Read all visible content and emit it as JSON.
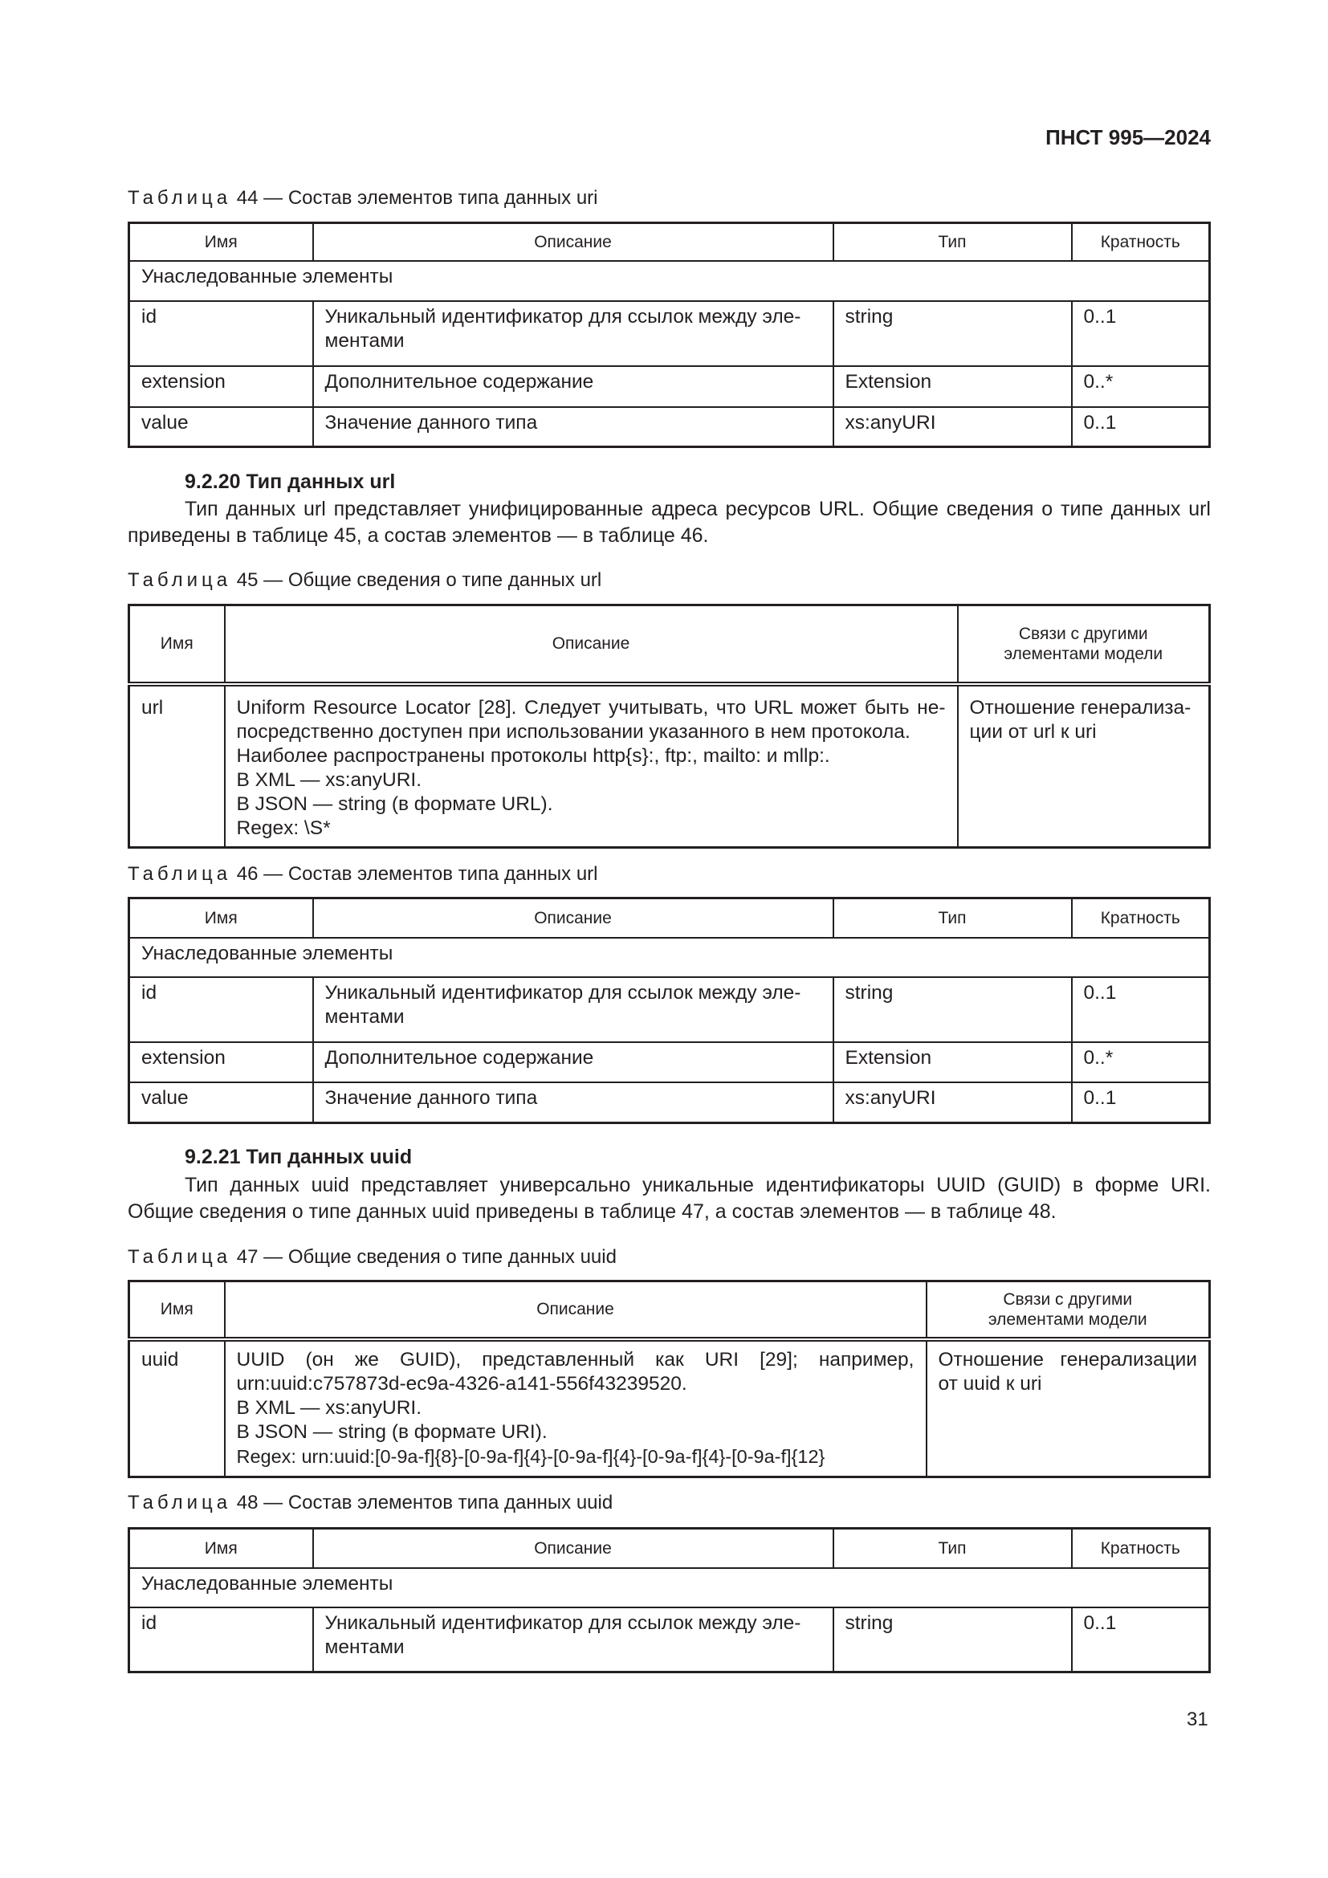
{
  "header": {
    "doc_id": "ПНСТ 995—2024"
  },
  "captions": {
    "word": "Таблица",
    "t44": "44 — Состав элементов типа данных uri",
    "t45": "45 — Общие сведения о типе данных url",
    "t46": "46 — Состав элементов типа данных url",
    "t47": "47 — Общие сведения о типе данных uuid",
    "t48": "48 — Состав элементов типа данных uuid"
  },
  "composition_headers": [
    "Имя",
    "Описание",
    "Тип",
    "Кратность"
  ],
  "info_headers": {
    "name": "Имя",
    "description": "Описание",
    "relations_45": "Связи с другими элементами модели",
    "relations_47": "Связи с другими элементами модели"
  },
  "inherited": "Унаследованные элементы",
  "t44_rows": [
    [
      "id",
      "Уникальный идентификатор для ссылок между эле-ментами",
      "string",
      "0..1"
    ],
    [
      "extension",
      "Дополнительное содержание",
      "Extension",
      "0..*"
    ],
    [
      "value",
      "Значение данного типа",
      "xs:anyURI",
      "0..1"
    ]
  ],
  "s9220": {
    "heading": "9.2.20 Тип данных url",
    "text": "Тип данных url представляет унифицированные адреса ресурсов URL. Общие сведения о типе данных url приведены в таблице 45, а состав элементов — в таблице 46."
  },
  "t45": {
    "name": "url",
    "description": [
      "Uniform Resource Locator [28]. Следует учитывать, что URL может быть не-посредственно доступен при использовании указанного в нем протокола.",
      "Наиболее распространены протоколы http{s}:, ftp:, mailto: и mllp:.",
      "В XML — xs:anyURI.",
      "В JSON — string (в формате URL).",
      "Regex: \\S*"
    ],
    "relation": "Отношение генерализа-ции от url к uri"
  },
  "t46_rows": [
    [
      "id",
      "Уникальный идентификатор для ссылок между эле-ментами",
      "string",
      "0..1"
    ],
    [
      "extension",
      "Дополнительное содержание",
      "Extension",
      "0..*"
    ],
    [
      "value",
      "Значение данного типа",
      "xs:anyURI",
      "0..1"
    ]
  ],
  "s9221": {
    "heading": "9.2.21 Тип данных uuid",
    "text": "Тип данных uuid представляет универсально уникальные идентификаторы UUID (GUID) в форме URI. Общие сведения о типе данных uuid приведены в таблице 47, а состав элементов — в таблице 48."
  },
  "t47": {
    "name": "uuid",
    "description": [
      "UUID (он же GUID), представленный как URI [29]; например, urn:uuid:c757873d-ec9a-4326-a141-556f43239520.",
      "В XML — xs:anyURI.",
      "В JSON — string (в формате URI).",
      "Regex: urn:uuid:[0-9a-f]{8}-[0-9a-f]{4}-[0-9a-f]{4}-[0-9a-f]{4}-[0-9a-f]{12}"
    ],
    "relation": "Отношение генерализации от uuid к uri"
  },
  "t48_rows": [
    [
      "id",
      "Уникальный идентификатор для ссылок между эле-ментами",
      "string",
      "0..1"
    ]
  ],
  "page_number": "31"
}
